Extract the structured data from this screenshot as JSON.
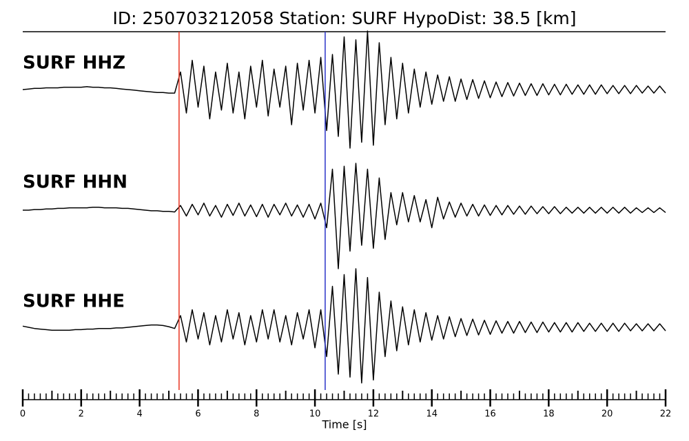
{
  "chart_data": {
    "type": "seismogram",
    "title": "ID: 250703212058   Station: SURF   HypoDist:    38.5 [km]",
    "xlabel": "Time [s]",
    "xlim": [
      0,
      22
    ],
    "xticks": [
      0,
      2,
      4,
      6,
      8,
      10,
      12,
      14,
      16,
      18,
      20,
      22
    ],
    "xminorticks": [
      0,
      0.2,
      0.4,
      0.6,
      0.8,
      1,
      1.2,
      1.4,
      1.6,
      1.8,
      2,
      2.2,
      2.4,
      2.6,
      2.8,
      3,
      3.2,
      3.4,
      3.6,
      3.8,
      4,
      4.2,
      4.4,
      4.6,
      4.8,
      5,
      5.2,
      5.4,
      5.6,
      5.8,
      6,
      6.2,
      6.4,
      6.6,
      6.8,
      7,
      7.2,
      7.4,
      7.6,
      7.8,
      8,
      8.2,
      8.4,
      8.6,
      8.8,
      9,
      9.2,
      9.4,
      9.6,
      9.8,
      10,
      10.2,
      10.4,
      10.6,
      10.8,
      11,
      11.2,
      11.4,
      11.6,
      11.8,
      12,
      12.2,
      12.4,
      12.6,
      12.8,
      13,
      13.2,
      13.4,
      13.6,
      13.8,
      14,
      14.2,
      14.4,
      14.6,
      14.8,
      15,
      15.2,
      15.4,
      15.6,
      15.8,
      16,
      16.2,
      16.4,
      16.6,
      16.8,
      17,
      17.2,
      17.4,
      17.6,
      17.8,
      18,
      18.2,
      18.4,
      18.6,
      18.8,
      19,
      19.2,
      19.4,
      19.6,
      19.8,
      20,
      20.2,
      20.4,
      20.6,
      20.8,
      21,
      21.2,
      21.4,
      21.6,
      21.8,
      22
    ],
    "x": [
      0,
      0.2,
      0.4,
      0.6,
      0.8,
      1,
      1.2,
      1.4,
      1.6,
      1.8,
      2,
      2.2,
      2.4,
      2.6,
      2.8,
      3,
      3.2,
      3.4,
      3.6,
      3.8,
      4,
      4.2,
      4.4,
      4.6,
      4.8,
      5,
      5.2,
      5.4,
      5.6,
      5.8,
      6,
      6.2,
      6.4,
      6.6,
      6.8,
      7,
      7.2,
      7.4,
      7.6,
      7.8,
      8,
      8.2,
      8.4,
      8.6,
      8.8,
      9,
      9.2,
      9.4,
      9.6,
      9.8,
      10,
      10.2,
      10.4,
      10.6,
      10.8,
      11,
      11.2,
      11.4,
      11.6,
      11.8,
      12,
      12.2,
      12.4,
      12.6,
      12.8,
      13,
      13.2,
      13.4,
      13.6,
      13.8,
      14,
      14.2,
      14.4,
      14.6,
      14.8,
      15,
      15.2,
      15.4,
      15.6,
      15.8,
      16,
      16.2,
      16.4,
      16.6,
      16.8,
      17,
      17.2,
      17.4,
      17.6,
      17.8,
      18,
      18.2,
      18.4,
      18.6,
      18.8,
      19,
      19.2,
      19.4,
      19.6,
      19.8,
      20,
      20.2,
      20.4,
      20.6,
      20.8,
      21,
      21.2,
      21.4,
      21.6,
      21.8,
      22
    ],
    "picks": [
      {
        "x": 5.35,
        "color": "#e8321f"
      },
      {
        "x": 10.35,
        "color": "#2832c8"
      }
    ],
    "label_color": "#4a9a0a",
    "series": [
      {
        "name": "SURF HHZ",
        "color": "#000000",
        "values": [
          0,
          0.01,
          0.02,
          0.02,
          0.03,
          0.03,
          0.03,
          0.04,
          0.04,
          0.04,
          0.04,
          0.05,
          0.04,
          0.04,
          0.03,
          0.03,
          0.02,
          0.01,
          0,
          -0.01,
          -0.02,
          -0.03,
          -0.04,
          -0.05,
          -0.05,
          -0.06,
          -0.06,
          0.3,
          -0.4,
          0.5,
          -0.3,
          0.4,
          -0.5,
          0.3,
          -0.35,
          0.45,
          -0.4,
          0.3,
          -0.5,
          0.4,
          -0.3,
          0.5,
          -0.45,
          0.35,
          -0.3,
          0.4,
          -0.6,
          0.45,
          -0.35,
          0.5,
          -0.4,
          0.55,
          -0.7,
          0.6,
          -0.8,
          0.9,
          -1.0,
          0.85,
          -0.9,
          1.0,
          -0.95,
          0.8,
          -0.6,
          0.55,
          -0.5,
          0.45,
          -0.4,
          0.35,
          -0.3,
          0.3,
          -0.25,
          0.25,
          -0.2,
          0.22,
          -0.2,
          0.18,
          -0.17,
          0.17,
          -0.15,
          0.15,
          -0.14,
          0.13,
          -0.12,
          0.12,
          -0.11,
          0.11,
          -0.1,
          0.1,
          -0.1,
          0.1,
          -0.09,
          0.09,
          -0.09,
          0.09,
          -0.08,
          0.08,
          -0.08,
          0.08,
          -0.08,
          0.08,
          -0.07,
          0.07,
          -0.07,
          0.07,
          -0.07,
          0.07,
          -0.06,
          0.06,
          -0.06,
          0.06,
          -0.06
        ]
      },
      {
        "name": "SURF HHN",
        "color": "#000000",
        "values": [
          0,
          0,
          0.01,
          0.01,
          0.02,
          0.02,
          0.03,
          0.03,
          0.04,
          0.04,
          0.04,
          0.04,
          0.05,
          0.05,
          0.04,
          0.04,
          0.04,
          0.03,
          0.03,
          0.02,
          0.01,
          0,
          -0.01,
          -0.01,
          -0.02,
          -0.02,
          -0.03,
          0.08,
          -0.1,
          0.1,
          -0.08,
          0.12,
          -0.1,
          0.08,
          -0.12,
          0.1,
          -0.09,
          0.12,
          -0.1,
          0.09,
          -0.11,
          0.1,
          -0.12,
          0.1,
          -0.08,
          0.12,
          -0.1,
          0.09,
          -0.12,
          0.1,
          -0.15,
          0.12,
          -0.3,
          0.7,
          -1.0,
          0.75,
          -0.7,
          0.8,
          -0.6,
          0.7,
          -0.65,
          0.55,
          -0.5,
          0.3,
          -0.25,
          0.3,
          -0.2,
          0.25,
          -0.2,
          0.18,
          -0.3,
          0.22,
          -0.15,
          0.14,
          -0.12,
          0.12,
          -0.1,
          0.1,
          -0.1,
          0.09,
          -0.09,
          0.08,
          -0.08,
          0.08,
          -0.07,
          0.07,
          -0.07,
          0.07,
          -0.06,
          0.06,
          -0.06,
          0.06,
          -0.06,
          0.05,
          -0.05,
          0.05,
          -0.05,
          0.05,
          -0.05,
          0.05,
          -0.05,
          0.05,
          -0.05,
          0.05,
          -0.05,
          0.04,
          -0.04,
          0.04,
          -0.04,
          0.04,
          -0.04
        ]
      },
      {
        "name": "SURF HHE",
        "color": "#000000",
        "values": [
          0.02,
          0,
          -0.02,
          -0.03,
          -0.04,
          -0.05,
          -0.05,
          -0.05,
          -0.05,
          -0.04,
          -0.04,
          -0.03,
          -0.03,
          -0.02,
          -0.02,
          -0.02,
          -0.01,
          -0.01,
          0,
          0.01,
          0.02,
          0.03,
          0.04,
          0.04,
          0.03,
          0.01,
          -0.02,
          0.2,
          -0.25,
          0.3,
          -0.2,
          0.25,
          -0.3,
          0.2,
          -0.25,
          0.3,
          -0.2,
          0.25,
          -0.3,
          0.2,
          -0.25,
          0.3,
          -0.2,
          0.3,
          -0.25,
          0.2,
          -0.3,
          0.25,
          -0.2,
          0.3,
          -0.35,
          0.3,
          -0.5,
          0.7,
          -0.8,
          0.9,
          -0.85,
          1.0,
          -0.95,
          0.85,
          -0.9,
          0.6,
          -0.5,
          0.45,
          -0.4,
          0.35,
          -0.3,
          0.3,
          -0.25,
          0.25,
          -0.22,
          0.2,
          -0.2,
          0.18,
          -0.16,
          0.15,
          -0.14,
          0.14,
          -0.13,
          0.12,
          -0.12,
          0.11,
          -0.1,
          0.1,
          -0.1,
          0.1,
          -0.09,
          0.09,
          -0.09,
          0.09,
          -0.08,
          0.08,
          -0.08,
          0.08,
          -0.08,
          0.08,
          -0.07,
          0.07,
          -0.07,
          0.07,
          -0.07,
          0.07,
          -0.07,
          0.07,
          -0.06,
          0.06,
          -0.06,
          0.06,
          -0.06,
          0.06,
          -0.06
        ]
      }
    ]
  }
}
